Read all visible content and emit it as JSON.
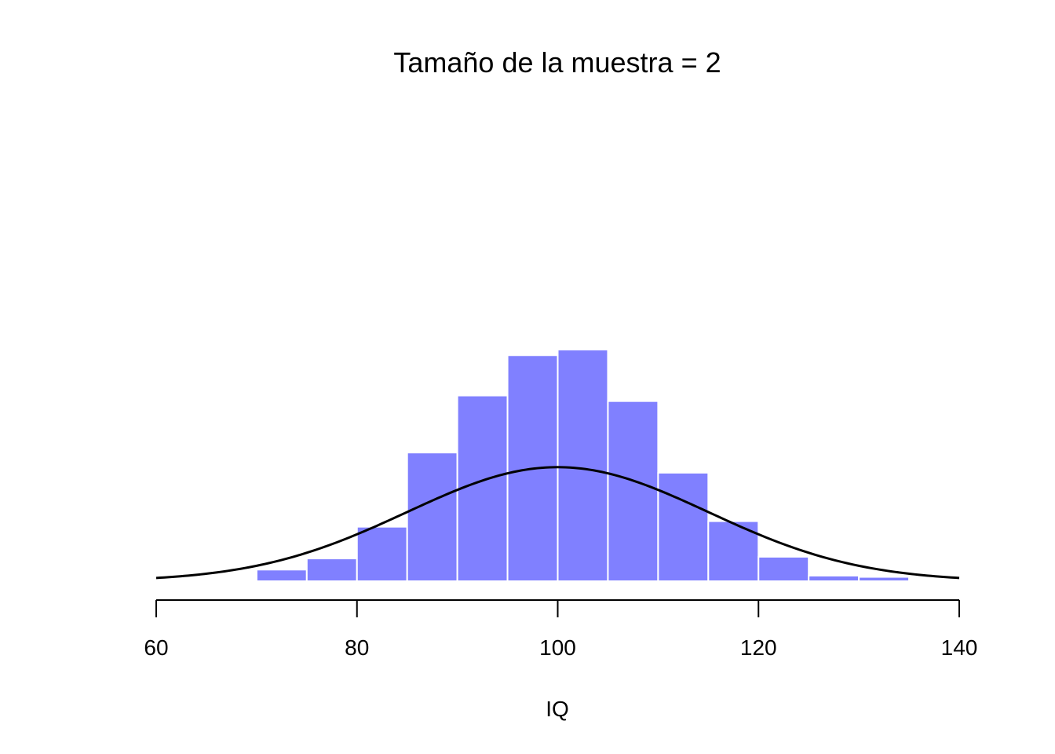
{
  "chart_data": {
    "type": "bar",
    "title": "Tamaño de la muestra = 2",
    "xlabel": "IQ",
    "ylabel": "",
    "xlim": [
      60,
      140
    ],
    "x_ticks": [
      60,
      80,
      100,
      120,
      140
    ],
    "bins": [
      {
        "start": 60,
        "end": 65,
        "value": 0.0003
      },
      {
        "start": 65,
        "end": 70,
        "value": 0
      },
      {
        "start": 70,
        "end": 75,
        "value": 0.0027
      },
      {
        "start": 75,
        "end": 80,
        "value": 0.0053
      },
      {
        "start": 80,
        "end": 85,
        "value": 0.0127
      },
      {
        "start": 85,
        "end": 90,
        "value": 0.03
      },
      {
        "start": 90,
        "end": 95,
        "value": 0.0433
      },
      {
        "start": 95,
        "end": 100,
        "value": 0.0527
      },
      {
        "start": 100,
        "end": 105,
        "value": 0.054
      },
      {
        "start": 105,
        "end": 110,
        "value": 0.042
      },
      {
        "start": 110,
        "end": 115,
        "value": 0.0253
      },
      {
        "start": 115,
        "end": 120,
        "value": 0.014
      },
      {
        "start": 120,
        "end": 125,
        "value": 0.0057
      },
      {
        "start": 125,
        "end": 130,
        "value": 0.0013
      },
      {
        "start": 130,
        "end": 135,
        "value": 0.001
      }
    ],
    "curve": {
      "type": "normal-density",
      "mean": 100,
      "sd": 15
    },
    "grid": false,
    "legend": "none",
    "colors": {
      "bar_fill": "#8080ff",
      "bar_border": "#ffffff",
      "curve": "#000000",
      "axis": "#000000",
      "text": "#000000"
    }
  }
}
